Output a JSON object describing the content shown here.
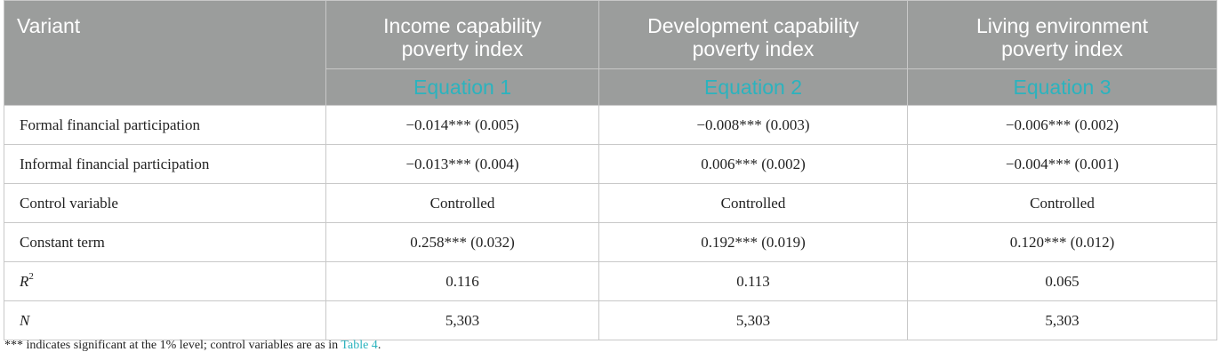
{
  "header": {
    "variant": "Variant",
    "columns": [
      {
        "title_line1": "Income capability",
        "title_line2": "poverty index",
        "equation": "Equation 1"
      },
      {
        "title_line1": "Development capability",
        "title_line2": "poverty index",
        "equation": "Equation 2"
      },
      {
        "title_line1": "Living environment",
        "title_line2": "poverty index",
        "equation": "Equation 3"
      }
    ]
  },
  "rows": [
    {
      "label": "Formal financial participation",
      "values": [
        "−0.014*** (0.005)",
        "−0.008*** (0.003)",
        "−0.006*** (0.002)"
      ]
    },
    {
      "label": "Informal financial participation",
      "values": [
        "−0.013*** (0.004)",
        "0.006*** (0.002)",
        "−0.004*** (0.001)"
      ]
    },
    {
      "label": "Control variable",
      "values": [
        "Controlled",
        "Controlled",
        "Controlled"
      ]
    },
    {
      "label": "Constant term",
      "values": [
        "0.258*** (0.032)",
        "0.192*** (0.019)",
        "0.120*** (0.012)"
      ]
    },
    {
      "label": "R",
      "label_sup": "2",
      "values": [
        "0.116",
        "0.113",
        "0.065"
      ]
    },
    {
      "label": "N",
      "values": [
        "5,303",
        "5,303",
        "5,303"
      ]
    }
  ],
  "footnote": {
    "text": "*** indicates significant at the 1% level; control variables are as in ",
    "link": "Table 4",
    "end": "."
  },
  "colors": {
    "header_bg": "#9b9d9c",
    "accent": "#2bb3be"
  }
}
